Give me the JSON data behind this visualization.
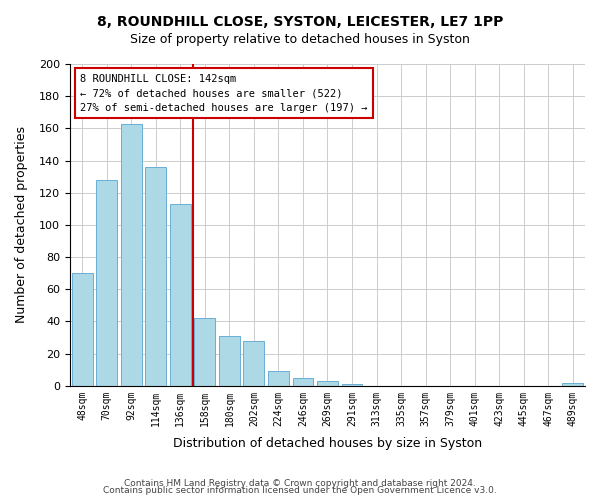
{
  "title1": "8, ROUNDHILL CLOSE, SYSTON, LEICESTER, LE7 1PP",
  "title2": "Size of property relative to detached houses in Syston",
  "xlabel": "Distribution of detached houses by size in Syston",
  "ylabel": "Number of detached properties",
  "bar_color": "#add8e6",
  "bar_edge_color": "#6baed6",
  "categories": [
    "48sqm",
    "70sqm",
    "92sqm",
    "114sqm",
    "136sqm",
    "158sqm",
    "180sqm",
    "202sqm",
    "224sqm",
    "246sqm",
    "269sqm",
    "291sqm",
    "313sqm",
    "335sqm",
    "357sqm",
    "379sqm",
    "401sqm",
    "423sqm",
    "445sqm",
    "467sqm",
    "489sqm"
  ],
  "values": [
    70,
    128,
    163,
    136,
    113,
    42,
    31,
    28,
    9,
    5,
    3,
    1,
    0,
    0,
    0,
    0,
    0,
    0,
    0,
    0,
    2
  ],
  "ylim": [
    0,
    200
  ],
  "yticks": [
    0,
    20,
    40,
    60,
    80,
    100,
    120,
    140,
    160,
    180,
    200
  ],
  "vline_x": 4.5,
  "vline_color": "#cc0000",
  "annotation_box_text": [
    "8 ROUNDHILL CLOSE: 142sqm",
    "← 72% of detached houses are smaller (522)",
    "27% of semi-detached houses are larger (197) →"
  ],
  "annotation_box_color": "#ffffff",
  "annotation_box_edge": "#cc0000",
  "footer1": "Contains HM Land Registry data © Crown copyright and database right 2024.",
  "footer2": "Contains public sector information licensed under the Open Government Licence v3.0.",
  "background_color": "#ffffff",
  "grid_color": "#cccccc"
}
